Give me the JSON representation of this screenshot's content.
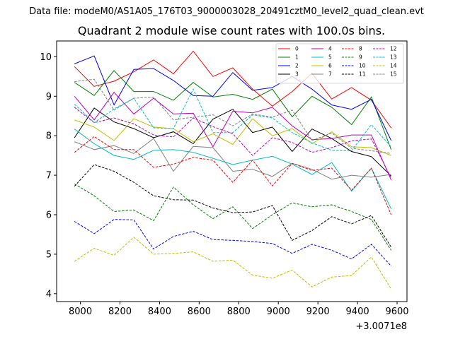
{
  "figure": {
    "suptitle": "Data file: modeM0/AS1A05_176T03_9000003028_20491cztM0_level2_quad_clean.evt",
    "title": "Quadrant 2 module wise count rates with 100.0s bins.",
    "x_offset_text": "+3.0071e8"
  },
  "chart_data": {
    "type": "line",
    "title": "Quadrant 2 module wise count rates with 100.0s bins.",
    "xlabel": "",
    "ylabel": "",
    "x_offset": "+3.0071e8",
    "xlim": [
      7880,
      9650
    ],
    "ylim": [
      3.8,
      10.4
    ],
    "xticks": [
      8000,
      8200,
      8400,
      8600,
      8800,
      9000,
      9200,
      9400,
      9600
    ],
    "yticks": [
      4,
      5,
      6,
      7,
      8,
      9,
      10
    ],
    "grid": false,
    "legend": {
      "location": "upper-right",
      "columns": 4
    },
    "x": [
      7970,
      8070,
      8170,
      8270,
      8370,
      8470,
      8570,
      8670,
      8770,
      8870,
      8970,
      9070,
      9170,
      9270,
      9370,
      9470,
      9570
    ],
    "series": [
      {
        "name": "0",
        "color": "#ff0000",
        "dash": "solid",
        "values": [
          9.75,
          9.25,
          9.38,
          9.62,
          9.92,
          9.57,
          10.14,
          9.5,
          9.72,
          9.18,
          8.75,
          9.12,
          9.58,
          8.93,
          9.22,
          8.9,
          8.2
        ]
      },
      {
        "name": "1",
        "color": "#008000",
        "dash": "solid",
        "values": [
          9.35,
          9.02,
          9.65,
          9.12,
          9.12,
          8.9,
          9.35,
          8.98,
          9.05,
          8.92,
          9.18,
          8.48,
          9.0,
          8.72,
          8.28,
          8.98,
          7.65
        ]
      },
      {
        "name": "2",
        "color": "#0000ff",
        "dash": "solid",
        "values": [
          9.82,
          10.02,
          8.78,
          9.68,
          9.7,
          9.4,
          9.02,
          9.0,
          9.6,
          9.15,
          9.22,
          9.5,
          9.18,
          8.78,
          8.67,
          8.92,
          7.88
        ]
      },
      {
        "name": "3",
        "color": "#000000",
        "dash": "solid",
        "values": [
          7.95,
          8.7,
          8.35,
          8.18,
          7.95,
          8.1,
          7.8,
          8.42,
          8.67,
          8.08,
          8.22,
          7.6,
          8.17,
          7.93,
          7.6,
          7.47,
          6.98
        ]
      },
      {
        "name": "4",
        "color": "#bf00bf",
        "dash": "solid",
        "values": [
          9.0,
          8.4,
          9.1,
          8.55,
          8.95,
          8.55,
          8.57,
          7.72,
          8.62,
          8.58,
          8.72,
          8.25,
          7.9,
          7.93,
          8.02,
          8.02,
          6.88
        ]
      },
      {
        "name": "5",
        "color": "#00bfbf",
        "dash": "solid",
        "values": [
          8.17,
          7.8,
          7.5,
          7.4,
          7.63,
          7.65,
          7.58,
          7.43,
          7.27,
          7.38,
          7.48,
          7.28,
          7.02,
          7.32,
          6.6,
          7.18,
          6.15
        ]
      },
      {
        "name": "6",
        "color": "#bfbf00",
        "dash": "solid",
        "values": [
          8.4,
          8.22,
          7.88,
          8.43,
          8.22,
          8.18,
          7.85,
          8.05,
          7.78,
          8.43,
          8.0,
          8.18,
          7.8,
          8.1,
          7.72,
          7.7,
          7.5
        ]
      },
      {
        "name": "7",
        "color": "#808080",
        "dash": "solid",
        "values": [
          7.85,
          7.65,
          7.75,
          7.55,
          7.93,
          7.1,
          7.73,
          7.7,
          7.1,
          7.15,
          6.97,
          7.3,
          7.15,
          6.9,
          7.0,
          6.95,
          7.02
        ]
      },
      {
        "name": "8",
        "color": "#ff0000",
        "dash": "dashed",
        "values": [
          7.58,
          7.98,
          7.65,
          7.65,
          7.2,
          7.28,
          7.45,
          7.38,
          6.82,
          7.38,
          6.73,
          7.3,
          7.12,
          7.18,
          6.62,
          7.18,
          6.0
        ]
      },
      {
        "name": "9",
        "color": "#008000",
        "dash": "dashed",
        "values": [
          6.78,
          6.48,
          6.08,
          6.12,
          5.85,
          6.7,
          6.25,
          5.9,
          6.2,
          5.65,
          6.0,
          6.3,
          6.2,
          6.25,
          6.08,
          5.88,
          5.1
        ]
      },
      {
        "name": "10",
        "color": "#0000ff",
        "dash": "dashed",
        "values": [
          5.83,
          5.52,
          5.88,
          5.87,
          5.13,
          5.45,
          5.58,
          5.37,
          5.35,
          5.32,
          5.27,
          5.02,
          5.25,
          5.1,
          4.88,
          5.25,
          4.7
        ]
      },
      {
        "name": "11",
        "color": "#000000",
        "dash": "dashed",
        "values": [
          6.72,
          7.27,
          7.1,
          6.82,
          6.48,
          6.38,
          6.37,
          6.17,
          6.05,
          6.07,
          6.23,
          5.35,
          5.6,
          5.95,
          5.77,
          5.98,
          5.18
        ]
      },
      {
        "name": "12",
        "color": "#bf00bf",
        "dash": "dashed",
        "values": [
          8.72,
          8.33,
          8.45,
          8.3,
          8.02,
          7.97,
          8.45,
          8.23,
          8.05,
          7.5,
          7.95,
          7.83,
          7.58,
          7.7,
          7.87,
          7.92,
          6.93
        ]
      },
      {
        "name": "13",
        "color": "#00bfbf",
        "dash": "dashed",
        "values": [
          8.8,
          8.33,
          8.68,
          8.95,
          8.2,
          8.18,
          9.18,
          8.08,
          8.08,
          8.53,
          8.45,
          8.08,
          7.82,
          7.63,
          7.62,
          8.28,
          7.72
        ]
      },
      {
        "name": "14",
        "color": "#bfbf00",
        "dash": "dashed",
        "values": [
          4.82,
          5.15,
          4.97,
          5.43,
          5.0,
          5.02,
          5.06,
          4.82,
          4.85,
          4.47,
          4.39,
          4.6,
          4.17,
          4.42,
          4.46,
          4.93,
          4.12
        ]
      },
      {
        "name": "15",
        "color": "#808080",
        "dash": "dashed",
        "values": [
          9.37,
          9.43,
          8.65,
          8.95,
          8.98,
          8.4,
          8.47,
          8.53,
          8.25,
          8.55,
          8.47,
          8.65,
          7.88,
          8.07,
          7.68,
          7.62,
          7.55
        ]
      }
    ]
  }
}
